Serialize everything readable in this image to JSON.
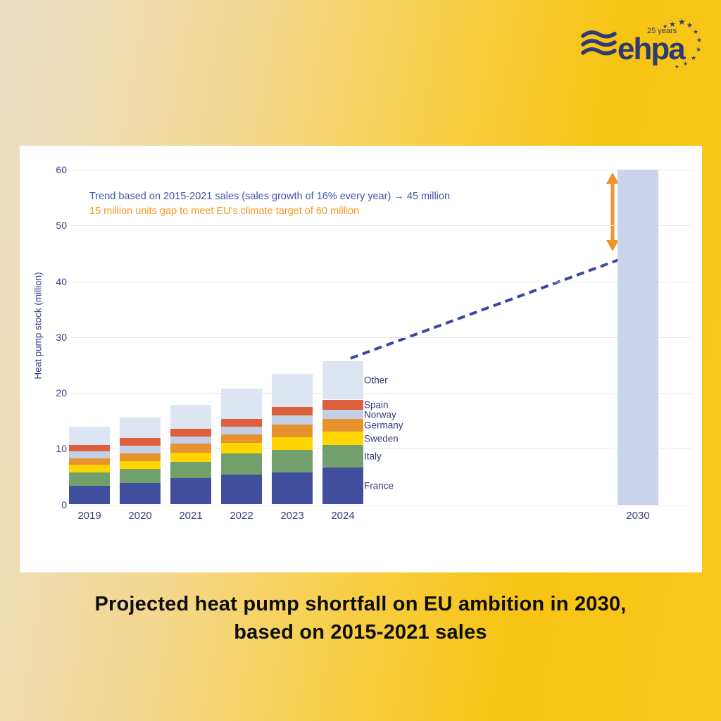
{
  "logo": {
    "brand": "ehpa",
    "badge": "25 years",
    "color": "#2e3a72"
  },
  "caption": {
    "line1": "Projected heat pump shortfall on EU ambition in 2030,",
    "line2": "based on 2015-2021 sales"
  },
  "chart_data": {
    "type": "bar",
    "subtype": "stacked-with-target",
    "ylabel": "Heat pump stock (million)",
    "ylim": [
      0,
      60
    ],
    "yticks": [
      0,
      10,
      20,
      30,
      40,
      50,
      60
    ],
    "grid": "horizontal",
    "categories": [
      "2019",
      "2020",
      "2021",
      "2022",
      "2023",
      "2024"
    ],
    "series": [
      {
        "name": "France",
        "color": "#414e9e",
        "values": [
          3.4,
          3.9,
          4.7,
          5.4,
          5.8,
          6.6
        ]
      },
      {
        "name": "Italy",
        "color": "#71a06c",
        "values": [
          2.4,
          2.5,
          2.9,
          3.7,
          4.0,
          4.1
        ]
      },
      {
        "name": "Sweden",
        "color": "#ffd500",
        "values": [
          1.3,
          1.4,
          1.7,
          1.9,
          2.3,
          2.3
        ]
      },
      {
        "name": "Germany",
        "color": "#e8922e",
        "values": [
          1.2,
          1.4,
          1.6,
          1.6,
          2.2,
          2.3
        ]
      },
      {
        "name": "Norway",
        "color": "#c3cfe6",
        "values": [
          1.2,
          1.3,
          1.3,
          1.3,
          1.7,
          1.7
        ]
      },
      {
        "name": "Spain",
        "color": "#dd5f3b",
        "values": [
          1.2,
          1.4,
          1.4,
          1.4,
          1.5,
          1.8
        ]
      },
      {
        "name": "Other",
        "color": "#dde4f2",
        "values": [
          3.2,
          3.7,
          4.2,
          5.4,
          5.9,
          6.9
        ]
      }
    ],
    "totals": [
      13.9,
      15.6,
      17.8,
      20.7,
      23.4,
      25.7
    ],
    "target_bar": {
      "category": "2030",
      "value": 60,
      "color": "#c9d3ea"
    },
    "trend": {
      "from_category": "2024",
      "from_value": 25.7,
      "to_category": "2030",
      "to_value": 45,
      "style": "dashed",
      "color": "#3b489e"
    },
    "gap_arrow": {
      "from": 45,
      "to": 60,
      "color": "#f0932a"
    },
    "annotations": [
      {
        "text": "Trend based on 2015-2021 sales (sales growth of 16% every year) → 45 million",
        "color": "#3e56ab"
      },
      {
        "text": "15 million units gap to meet EU's climate target of 60 million",
        "color": "#f7941d"
      }
    ]
  }
}
